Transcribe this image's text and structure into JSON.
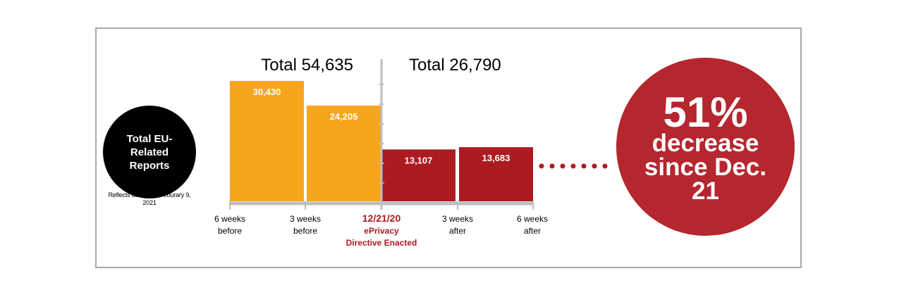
{
  "left_badge": {
    "text": "Total EU-Related Reports",
    "note": "Reflects data as of Feburary 9, 2021"
  },
  "colors": {
    "before": "#f7a51c",
    "after": "#ad1a20",
    "axis": "#bcbec0",
    "dots": "#ad1a20",
    "badge": "#b5262e"
  },
  "chart_data": {
    "type": "bar",
    "categories": [
      "6 weeks before",
      "3 weeks before",
      "3 weeks after",
      "6 weeks after"
    ],
    "values": [
      30430,
      24205,
      13107,
      13683
    ],
    "value_labels": [
      "30,430",
      "24,205",
      "13,107",
      "13,683"
    ],
    "periods": [
      "before",
      "before",
      "after",
      "after"
    ],
    "tick_labels": [
      {
        "lines": [
          "6 weeks",
          "before"
        ],
        "highlight": false
      },
      {
        "lines": [
          "3 weeks",
          "before"
        ],
        "highlight": false
      },
      {
        "lines": [
          "12/21/20",
          "ePrivacy",
          "Directive Enacted"
        ],
        "highlight": true
      },
      {
        "lines": [
          "3 weeks",
          "after"
        ],
        "highlight": false
      },
      {
        "lines": [
          "6 weeks",
          "after"
        ],
        "highlight": false
      }
    ],
    "totals": [
      "Total 54,635",
      "Total 26,790"
    ],
    "ylim": [
      0,
      30430
    ],
    "grid": false
  },
  "big_badge": {
    "percent": "51%",
    "text": "decrease since Dec. 21"
  }
}
